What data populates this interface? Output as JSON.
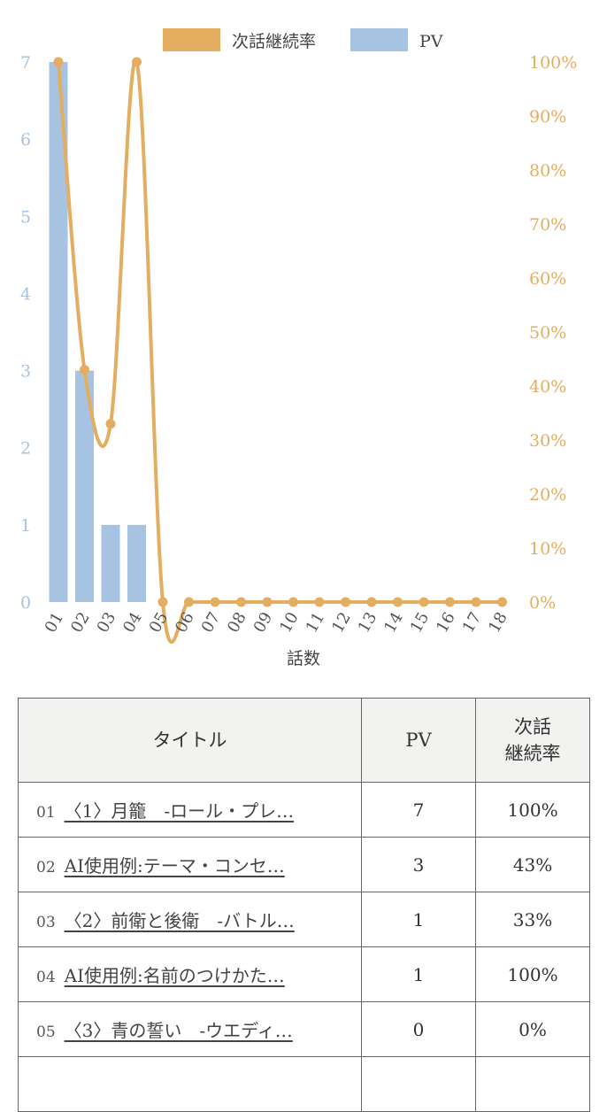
{
  "chart_data": {
    "type": "bar+line",
    "legend": {
      "placement": "top-center",
      "items": [
        "次話継続率",
        "PV"
      ]
    },
    "xlabel": "話数",
    "categories": [
      "01",
      "02",
      "03",
      "04",
      "05",
      "06",
      "07",
      "08",
      "09",
      "10",
      "11",
      "12",
      "13",
      "14",
      "15",
      "16",
      "17",
      "18"
    ],
    "series": [
      {
        "name": "PV",
        "type": "bar",
        "axis": "left",
        "color": "#a7c3e2",
        "values": [
          7,
          3,
          1,
          1,
          0,
          0,
          0,
          0,
          0,
          0,
          0,
          0,
          0,
          0,
          0,
          0,
          0,
          0
        ]
      },
      {
        "name": "次話継続率",
        "type": "line",
        "axis": "right",
        "color": "#e5ad5f",
        "values": [
          100,
          43,
          33,
          100,
          0,
          0,
          0,
          0,
          0,
          0,
          0,
          0,
          0,
          0,
          0,
          0,
          0,
          0
        ]
      }
    ],
    "left_axis": {
      "range": [
        0,
        7
      ],
      "ticks": [
        "0",
        "1",
        "2",
        "3",
        "4",
        "5",
        "6",
        "7"
      ]
    },
    "right_axis": {
      "range": [
        0,
        100
      ],
      "ticks": [
        "0%",
        "10%",
        "20%",
        "30%",
        "40%",
        "50%",
        "60%",
        "70%",
        "80%",
        "90%",
        "100%"
      ]
    },
    "grid": false
  },
  "table": {
    "headers": {
      "title": "タイトル",
      "pv": "PV",
      "rate_line1": "次話",
      "rate_line2": "継続率"
    },
    "rows": [
      {
        "num": "01",
        "title": "〈1〉月籠　-ロール・プレ…",
        "pv": "7",
        "rate": "100%"
      },
      {
        "num": "02",
        "title": "AI使用例:テーマ・コンセ…",
        "pv": "3",
        "rate": "43%"
      },
      {
        "num": "03",
        "title": "〈2〉前衛と後衛　-バトル…",
        "pv": "1",
        "rate": "33%"
      },
      {
        "num": "04",
        "title": "AI使用例:名前のつけかた…",
        "pv": "1",
        "rate": "100%"
      },
      {
        "num": "05",
        "title": "〈3〉青の誓い　-ウエディ…",
        "pv": "0",
        "rate": "0%"
      },
      {
        "num": "",
        "title": "",
        "pv": "",
        "rate": ""
      }
    ]
  }
}
